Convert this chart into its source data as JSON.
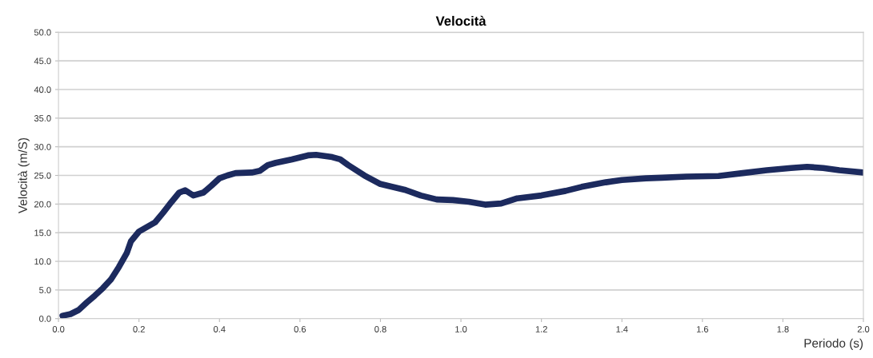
{
  "chart_data": {
    "type": "line",
    "title": "Velocità",
    "xlabel": "Periodo (s)",
    "ylabel": "Velocità (m/S)",
    "x": [
      0.01,
      0.03,
      0.05,
      0.07,
      0.09,
      0.11,
      0.13,
      0.15,
      0.17,
      0.18,
      0.2,
      0.22,
      0.24,
      0.26,
      0.28,
      0.3,
      0.315,
      0.335,
      0.36,
      0.38,
      0.4,
      0.42,
      0.44,
      0.48,
      0.5,
      0.52,
      0.54,
      0.58,
      0.62,
      0.64,
      0.68,
      0.7,
      0.72,
      0.76,
      0.8,
      0.86,
      0.9,
      0.94,
      0.98,
      1.02,
      1.06,
      1.1,
      1.14,
      1.2,
      1.26,
      1.3,
      1.36,
      1.4,
      1.46,
      1.5,
      1.56,
      1.64,
      1.7,
      1.76,
      1.82,
      1.86,
      1.9,
      1.94,
      2.0
    ],
    "series": [
      {
        "color": "#1c2a5e",
        "values": [
          0.5,
          0.8,
          1.5,
          2.8,
          4.0,
          5.3,
          6.8,
          9.0,
          11.5,
          13.5,
          15.2,
          16.0,
          16.8,
          18.5,
          20.3,
          22.0,
          22.4,
          21.5,
          22.0,
          23.2,
          24.5,
          25.0,
          25.4,
          25.5,
          25.8,
          26.8,
          27.2,
          27.8,
          28.5,
          28.6,
          28.2,
          27.8,
          26.8,
          25.0,
          23.5,
          22.5,
          21.5,
          20.8,
          20.7,
          20.4,
          19.9,
          20.1,
          21.0,
          21.5,
          22.3,
          23.0,
          23.8,
          24.2,
          24.5,
          24.6,
          24.8,
          24.9,
          25.4,
          25.9,
          26.3,
          26.5,
          26.3,
          25.9,
          25.5
        ]
      }
    ],
    "xlim": [
      0,
      2.0
    ],
    "ylim": [
      0,
      50
    ],
    "xticks": [
      {
        "value": 0,
        "label": "0.0"
      },
      {
        "value": 0.2,
        "label": "0.2"
      },
      {
        "value": 0.4,
        "label": "0.4"
      },
      {
        "value": 0.6,
        "label": "0.6"
      },
      {
        "value": 0.8,
        "label": "0.8"
      },
      {
        "value": 1.0,
        "label": "1.0"
      },
      {
        "value": 1.2,
        "label": "1.2"
      },
      {
        "value": 1.4,
        "label": "1.4"
      },
      {
        "value": 1.6,
        "label": "1.6"
      },
      {
        "value": 1.8,
        "label": "1.8"
      },
      {
        "value": 2.0,
        "label": "2.0"
      }
    ],
    "yticks": [
      {
        "value": 0,
        "label": "0.0"
      },
      {
        "value": 5,
        "label": "5.0"
      },
      {
        "value": 10,
        "label": "10.0"
      },
      {
        "value": 15,
        "label": "15.0"
      },
      {
        "value": 20,
        "label": "20.0"
      },
      {
        "value": 25,
        "label": "25.0"
      },
      {
        "value": 30,
        "label": "30.0"
      },
      {
        "value": 35,
        "label": "35.0"
      },
      {
        "value": 40,
        "label": "40.0"
      },
      {
        "value": 45,
        "label": "45.0"
      },
      {
        "value": 50,
        "label": "50.0"
      }
    ],
    "grid": "y",
    "legend": false,
    "marker": "none",
    "line_style": "solid"
  }
}
